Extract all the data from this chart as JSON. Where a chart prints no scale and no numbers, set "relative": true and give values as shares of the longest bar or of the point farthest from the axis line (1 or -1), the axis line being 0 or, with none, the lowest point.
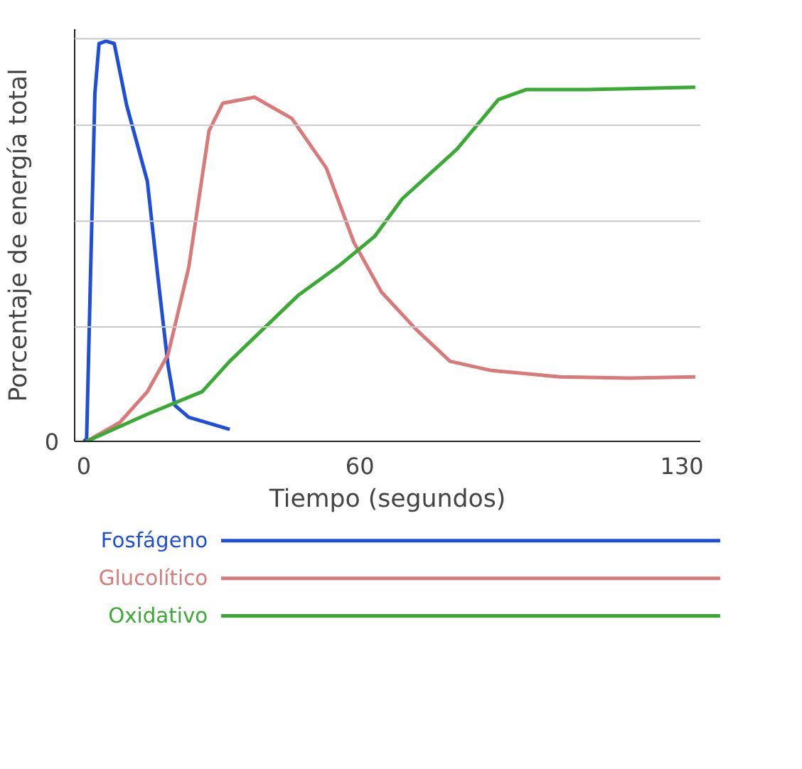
{
  "chart_data": {
    "type": "line",
    "xlabel": "Tiempo (segundos)",
    "ylabel": "Porcentaje de energía total",
    "relative": true,
    "xlim": [
      -2,
      134
    ],
    "xticks": [
      0,
      60,
      130
    ],
    "annotations": [
      "0"
    ],
    "legend": "bottom",
    "line_style": "solid",
    "ref_lines": [
      {
        "axis": "y",
        "value": 1.006,
        "color": "#c8c8c8"
      },
      {
        "axis": "y",
        "value": 0.79,
        "color": "#c8c8c8"
      },
      {
        "axis": "y",
        "value": 0.55,
        "color": "#c8c8c8"
      },
      {
        "axis": "y",
        "value": 0.286,
        "color": "#c8c8c8"
      }
    ],
    "series": [
      {
        "name": "Fosfágeno",
        "color": "#1f4fd6",
        "x": [
          0,
          0.6,
          2.4,
          3.3,
          4.8,
          6.6,
          9.3,
          13.8,
          16.2,
          18.3,
          19.8,
          22.8,
          31.7
        ],
        "values": [
          0,
          0.006,
          0.87,
          0.994,
          1.0,
          0.994,
          0.84,
          0.65,
          0.4,
          0.19,
          0.09,
          0.06,
          0.03
        ]
      },
      {
        "name": "Glucolítico",
        "color": "#d97a7a",
        "x": [
          0.6,
          7.8,
          13.8,
          18.3,
          22.8,
          27.2,
          30.2,
          37.1,
          45.2,
          52.7,
          58.7,
          64.7,
          72.2,
          79.6,
          88.6,
          103.6,
          118.6,
          132.9
        ],
        "values": [
          0,
          0.047,
          0.124,
          0.217,
          0.435,
          0.776,
          0.845,
          0.86,
          0.807,
          0.683,
          0.497,
          0.373,
          0.28,
          0.2,
          0.177,
          0.161,
          0.158,
          0.161
        ]
      },
      {
        "name": "Oxidativo",
        "color": "#3aaa35",
        "x": [
          0.6,
          13.8,
          25.7,
          31.7,
          46.7,
          55.7,
          63.2,
          69.2,
          81.1,
          90.1,
          96.1,
          109.6,
          132.9
        ],
        "values": [
          0,
          0.068,
          0.124,
          0.2,
          0.366,
          0.441,
          0.512,
          0.606,
          0.73,
          0.854,
          0.879,
          0.879,
          0.885
        ]
      }
    ]
  }
}
